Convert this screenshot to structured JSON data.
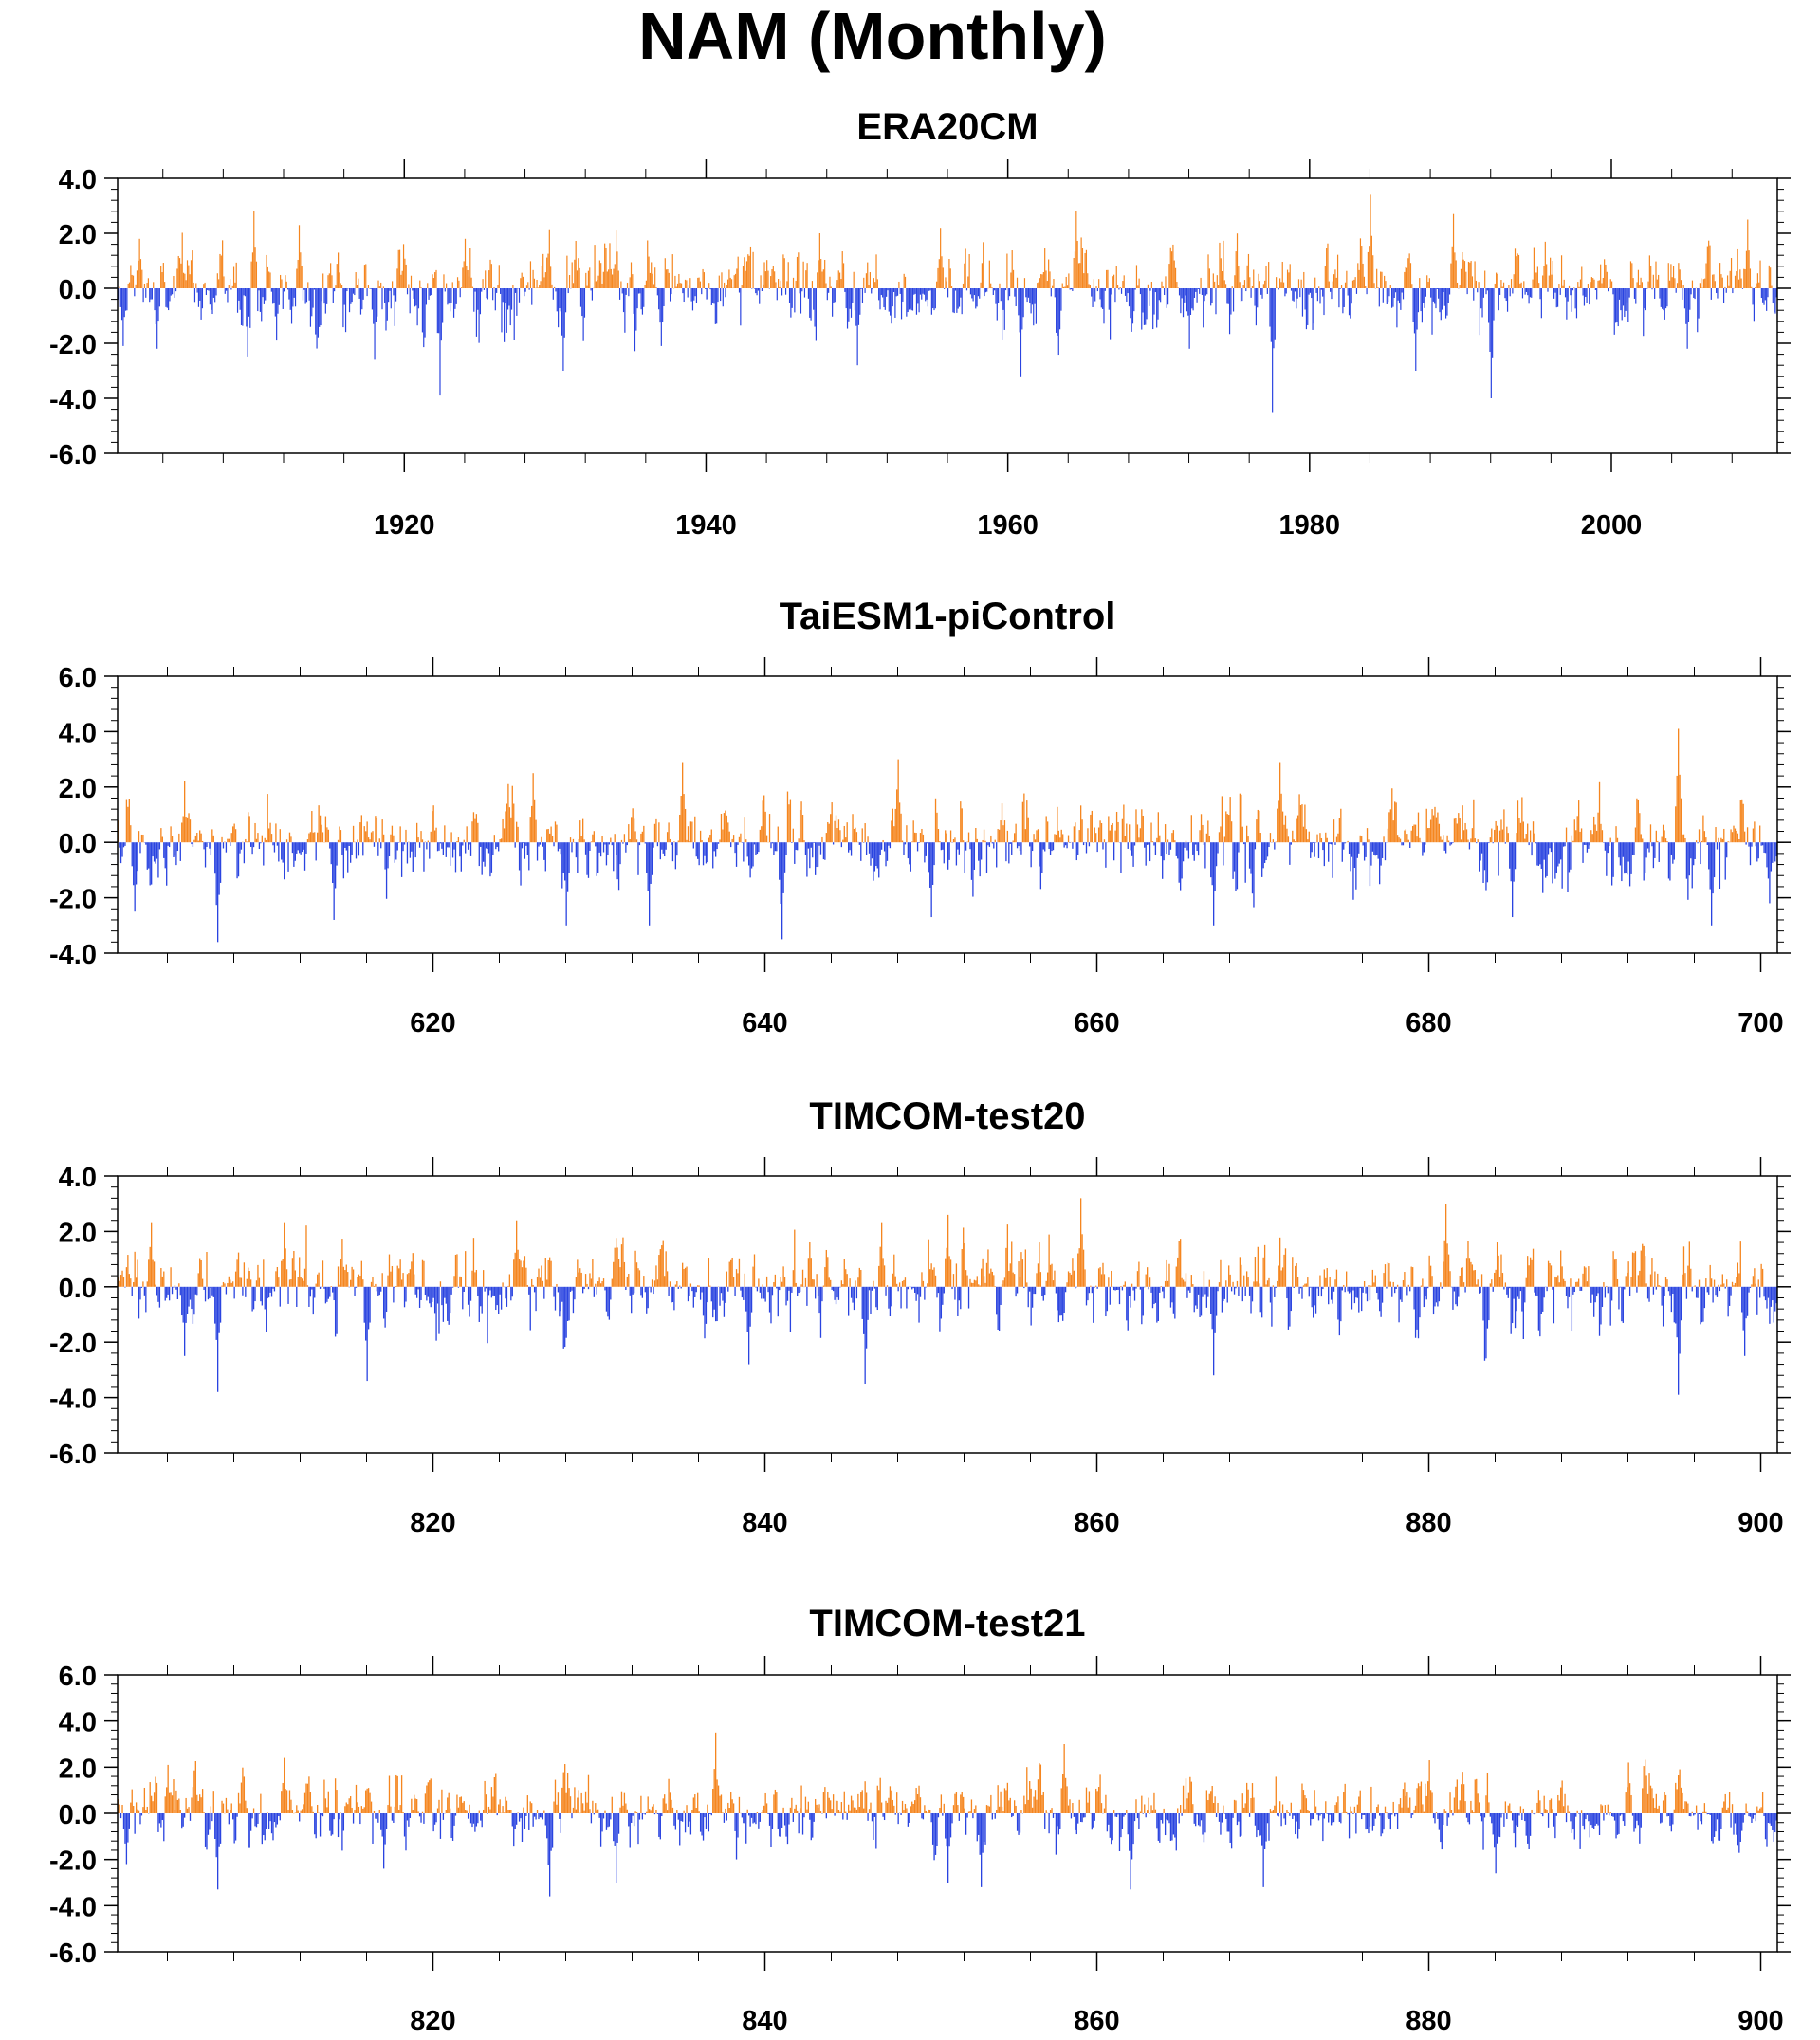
{
  "title": "NAM (Monthly)",
  "colors": {
    "positive": "#f5861f",
    "negative": "#2a44e0",
    "axis": "#000000"
  },
  "chart_data": [
    {
      "type": "bar",
      "title": "ERA20CM",
      "xlabel": "",
      "ylabel": "",
      "x_start": 1901,
      "x_end": 2011,
      "xlim": [
        1901,
        2011
      ],
      "ylim": [
        -6.0,
        4.0
      ],
      "yticks": [
        4.0,
        2.0,
        0.0,
        -2.0,
        -4.0,
        -6.0
      ],
      "ytick_labels": [
        "4.0",
        "2.0",
        "0.0",
        "-2.0",
        "-4.0",
        "-6.0"
      ],
      "xticks": [
        1920,
        1940,
        1960,
        1980,
        2000
      ],
      "xtick_labels": [
        "1920",
        "1940",
        "1960",
        "1980",
        "2000"
      ],
      "grid": false,
      "legend": "none",
      "extremes": [
        {
          "x": 1901.3,
          "y": -2.1
        },
        {
          "x": 1902.4,
          "y": 1.8
        },
        {
          "x": 1903.6,
          "y": -2.2
        },
        {
          "x": 1910.0,
          "y": 2.8
        },
        {
          "x": 1911.5,
          "y": -1.9
        },
        {
          "x": 1913.0,
          "y": 2.3
        },
        {
          "x": 1918.0,
          "y": -2.6
        },
        {
          "x": 1922.3,
          "y": -3.9
        },
        {
          "x": 1924.0,
          "y": 1.8
        },
        {
          "x": 1930.5,
          "y": -3.0
        },
        {
          "x": 1934.0,
          "y": 2.1
        },
        {
          "x": 1937.0,
          "y": -2.1
        },
        {
          "x": 1947.5,
          "y": 2.0
        },
        {
          "x": 1950.0,
          "y": -2.8
        },
        {
          "x": 1955.5,
          "y": 2.2
        },
        {
          "x": 1960.8,
          "y": -3.2
        },
        {
          "x": 1964.5,
          "y": 2.8
        },
        {
          "x": 1972.0,
          "y": -2.2
        },
        {
          "x": 1977.5,
          "y": -4.5
        },
        {
          "x": 1984.0,
          "y": 3.4
        },
        {
          "x": 1987.0,
          "y": -3.0
        },
        {
          "x": 1989.5,
          "y": 2.7
        },
        {
          "x": 1992.0,
          "y": -4.0
        },
        {
          "x": 2005.0,
          "y": -2.2
        },
        {
          "x": 2009.0,
          "y": 2.5
        }
      ]
    },
    {
      "type": "bar",
      "title": "TaiESM1-piControl",
      "xlabel": "",
      "ylabel": "",
      "x_start": 601,
      "x_end": 701,
      "xlim": [
        601,
        701
      ],
      "ylim": [
        -4.0,
        6.0
      ],
      "yticks": [
        6.0,
        4.0,
        2.0,
        0.0,
        -2.0,
        -4.0
      ],
      "ytick_labels": [
        "6.0",
        "4.0",
        "2.0",
        "0.0",
        "-2.0",
        "-4.0"
      ],
      "xticks": [
        620,
        640,
        660,
        680,
        700
      ],
      "xtick_labels": [
        "620",
        "640",
        "660",
        "680",
        "700"
      ],
      "grid": false,
      "legend": "none",
      "extremes": [
        {
          "x": 602.0,
          "y": -2.5
        },
        {
          "x": 605.0,
          "y": 2.2
        },
        {
          "x": 607.0,
          "y": -3.6
        },
        {
          "x": 614.0,
          "y": -2.8
        },
        {
          "x": 626.0,
          "y": 2.5
        },
        {
          "x": 628.0,
          "y": -3.0
        },
        {
          "x": 633.0,
          "y": -3.0
        },
        {
          "x": 635.0,
          "y": 2.9
        },
        {
          "x": 641.0,
          "y": -3.5
        },
        {
          "x": 648.0,
          "y": 3.0
        },
        {
          "x": 650.0,
          "y": -2.7
        },
        {
          "x": 667.0,
          "y": -3.0
        },
        {
          "x": 671.0,
          "y": 2.9
        },
        {
          "x": 685.0,
          "y": -2.7
        },
        {
          "x": 695.0,
          "y": 4.1
        },
        {
          "x": 697.0,
          "y": -3.0
        },
        {
          "x": 700.5,
          "y": -2.2
        }
      ]
    },
    {
      "type": "bar",
      "title": "TIMCOM-test20",
      "xlabel": "",
      "ylabel": "",
      "x_start": 801,
      "x_end": 901,
      "xlim": [
        801,
        901
      ],
      "ylim": [
        -6.0,
        4.0
      ],
      "yticks": [
        4.0,
        2.0,
        0.0,
        -2.0,
        -4.0,
        -6.0
      ],
      "ytick_labels": [
        "4.0",
        "2.0",
        "0.0",
        "-2.0",
        "-4.0",
        "-6.0"
      ],
      "xticks": [
        820,
        840,
        860,
        880,
        900
      ],
      "xtick_labels": [
        "820",
        "840",
        "860",
        "880",
        "900"
      ],
      "grid": false,
      "legend": "none",
      "extremes": [
        {
          "x": 803.0,
          "y": 2.3
        },
        {
          "x": 805.0,
          "y": -2.5
        },
        {
          "x": 807.0,
          "y": -3.8
        },
        {
          "x": 811.0,
          "y": 2.3
        },
        {
          "x": 816.0,
          "y": -3.4
        },
        {
          "x": 825.0,
          "y": 2.4
        },
        {
          "x": 839.0,
          "y": -2.8
        },
        {
          "x": 846.0,
          "y": -3.5
        },
        {
          "x": 847.0,
          "y": 2.3
        },
        {
          "x": 851.0,
          "y": 2.6
        },
        {
          "x": 859.0,
          "y": 3.2
        },
        {
          "x": 867.0,
          "y": -3.2
        },
        {
          "x": 881.0,
          "y": 3.0
        },
        {
          "x": 895.0,
          "y": -3.9
        },
        {
          "x": 899.0,
          "y": -2.5
        }
      ]
    },
    {
      "type": "bar",
      "title": "TIMCOM-test21",
      "xlabel": "",
      "ylabel": "",
      "x_start": 801,
      "x_end": 901,
      "xlim": [
        801,
        901
      ],
      "ylim": [
        -6.0,
        6.0
      ],
      "yticks": [
        6.0,
        4.0,
        2.0,
        0.0,
        -2.0,
        -4.0,
        -6.0
      ],
      "ytick_labels": [
        "6.0",
        "4.0",
        "2.0",
        "0.0",
        "-2.0",
        "-4.0",
        "-6.0"
      ],
      "xticks": [
        820,
        840,
        860,
        880,
        900
      ],
      "xtick_labels": [
        "820",
        "840",
        "860",
        "880",
        "900"
      ],
      "grid": false,
      "legend": "none",
      "extremes": [
        {
          "x": 801.5,
          "y": -2.2
        },
        {
          "x": 804.0,
          "y": 2.1
        },
        {
          "x": 807.0,
          "y": -3.3
        },
        {
          "x": 811.0,
          "y": 2.4
        },
        {
          "x": 817.0,
          "y": -2.4
        },
        {
          "x": 827.0,
          "y": -3.6
        },
        {
          "x": 831.0,
          "y": -3.0
        },
        {
          "x": 837.0,
          "y": 3.5
        },
        {
          "x": 851.0,
          "y": -3.0
        },
        {
          "x": 853.0,
          "y": -3.2
        },
        {
          "x": 858.0,
          "y": 3.0
        },
        {
          "x": 862.0,
          "y": -3.3
        },
        {
          "x": 870.0,
          "y": -3.2
        },
        {
          "x": 880.0,
          "y": 2.3
        },
        {
          "x": 884.0,
          "y": -2.6
        },
        {
          "x": 892.0,
          "y": 2.2
        }
      ]
    }
  ]
}
